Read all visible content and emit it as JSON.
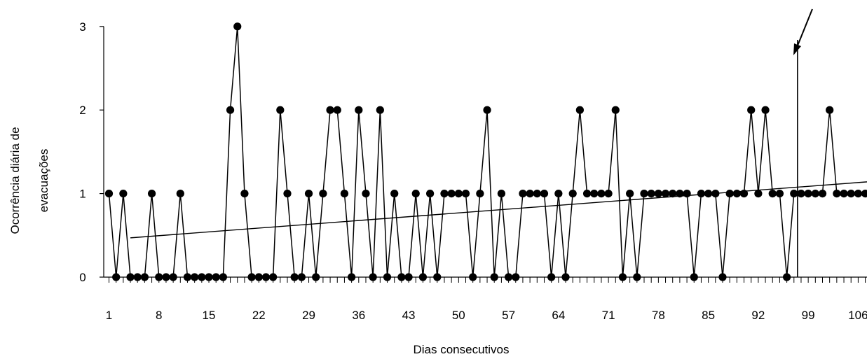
{
  "chart_data": {
    "type": "line",
    "title": "",
    "xlabel": "Dias consecutivos",
    "ylabel_lines": [
      "Ocorrência diária de",
      "evacuações"
    ],
    "x_tick_labels": [
      "1",
      "8",
      "15",
      "22",
      "29",
      "36",
      "43",
      "50",
      "57",
      "64",
      "71",
      "78",
      "85",
      "92",
      "99",
      "106"
    ],
    "y_tick_labels": [
      "0",
      "1",
      "2",
      "3"
    ],
    "xlim": [
      1,
      108
    ],
    "ylim": [
      0,
      3
    ],
    "grid": false,
    "legend": "none",
    "x": [
      1,
      2,
      3,
      4,
      5,
      6,
      7,
      8,
      9,
      10,
      11,
      12,
      13,
      14,
      15,
      16,
      17,
      18,
      19,
      20,
      21,
      22,
      23,
      24,
      25,
      26,
      27,
      28,
      29,
      30,
      31,
      32,
      33,
      34,
      35,
      36,
      37,
      38,
      39,
      40,
      41,
      42,
      43,
      44,
      45,
      46,
      47,
      48,
      49,
      50,
      51,
      52,
      53,
      54,
      55,
      56,
      57,
      58,
      59,
      60,
      61,
      62,
      63,
      64,
      65,
      66,
      67,
      68,
      69,
      70,
      71,
      72,
      73,
      74,
      75,
      76,
      77,
      78,
      79,
      80,
      81,
      82,
      83,
      84,
      85,
      86,
      87,
      88,
      89,
      90,
      91,
      92,
      93,
      94,
      95,
      96,
      97,
      98,
      99,
      100,
      101,
      102,
      103,
      104,
      105,
      106,
      107,
      108
    ],
    "values": [
      1,
      0,
      1,
      0,
      0,
      0,
      1,
      0,
      0,
      0,
      1,
      0,
      0,
      0,
      0,
      0,
      0,
      2,
      3,
      1,
      0,
      0,
      0,
      0,
      2,
      1,
      0,
      0,
      1,
      0,
      1,
      2,
      2,
      1,
      0,
      2,
      1,
      0,
      2,
      0,
      1,
      0,
      0,
      1,
      0,
      1,
      0,
      1,
      1,
      1,
      1,
      0,
      1,
      2,
      0,
      1,
      0,
      0,
      1,
      1,
      1,
      1,
      0,
      1,
      0,
      1,
      2,
      1,
      1,
      1,
      1,
      2,
      0,
      1,
      0,
      1,
      1,
      1,
      1,
      1,
      1,
      1,
      0,
      1,
      1,
      1,
      0,
      1,
      1,
      1,
      2,
      1,
      2,
      1,
      1,
      0,
      1,
      1,
      1,
      1,
      1,
      2,
      1,
      1,
      1,
      1,
      1,
      1
    ],
    "trendline": {
      "type": "linear",
      "start": [
        4,
        0.47
      ],
      "end": [
        108,
        1.14
      ]
    },
    "phase_change_line": {
      "x": 97.5
    },
    "annotation_arrow": {
      "points_to": "phase_change_line"
    },
    "marker_color": "#000000",
    "line_color": "#000000"
  }
}
